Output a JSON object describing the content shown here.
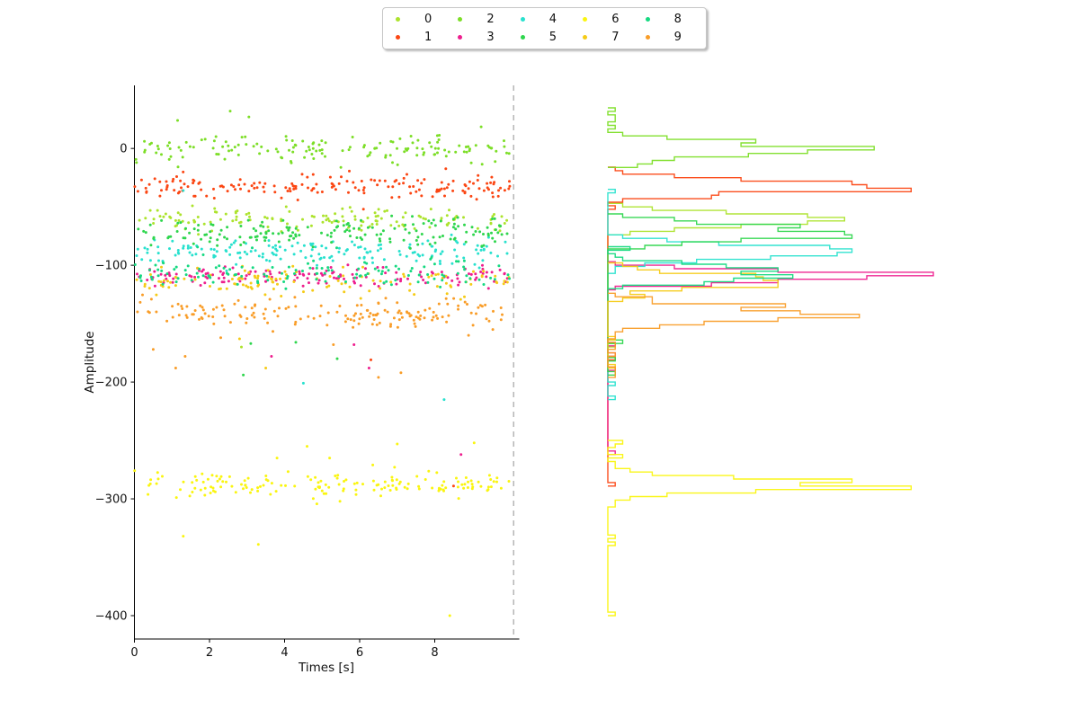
{
  "legend": {
    "entries": [
      {
        "label": "0",
        "color": "#ACE32C"
      },
      {
        "label": "1",
        "color": "#FB4613"
      },
      {
        "label": "2",
        "color": "#7CDE26"
      },
      {
        "label": "3",
        "color": "#EE1E8E"
      },
      {
        "label": "4",
        "color": "#28E1CE"
      },
      {
        "label": "5",
        "color": "#2ED64D"
      },
      {
        "label": "6",
        "color": "#FAF50F"
      },
      {
        "label": "7",
        "color": "#F5CB16"
      },
      {
        "label": "8",
        "color": "#15D981"
      },
      {
        "label": "9",
        "color": "#F99D28"
      }
    ]
  },
  "scatter_plot": {
    "xlabel": "Times [s]",
    "ylabel": "Amplitude",
    "xticks": [
      0,
      2,
      4,
      6,
      8
    ],
    "xtick_labels": [
      "0",
      "2",
      "4",
      "6",
      "8"
    ],
    "yticks": [
      0,
      -100,
      -200,
      -300,
      -400
    ],
    "ytick_labels": [
      "0",
      "−100",
      "−200",
      "−300",
      "−400"
    ],
    "end_line": {
      "x": 10.1,
      "style": "dashed",
      "color": "#a3a3a3"
    }
  },
  "chart_data": {
    "type": "scatter",
    "title": "",
    "xlabel": "Times [s]",
    "ylabel": "Amplitude",
    "xlim": [
      0,
      10.25
    ],
    "ylim": [
      -420,
      54
    ],
    "time_range": [
      0,
      10
    ],
    "recording_end_line_x": 10.1,
    "right_panel": "per-unit amplitude step-histogram, horizontal counts, shared amplitude axis, no axes drawn",
    "hist_bin_width": 3,
    "series": [
      {
        "label": "0",
        "color": "#ACE32C",
        "amp_mean": -60,
        "amp_std": 5.5,
        "n": 140,
        "seed": 101,
        "outliers": [
          [
            2.85,
            -170
          ]
        ]
      },
      {
        "label": "1",
        "color": "#FB4613",
        "amp_mean": -33,
        "amp_std": 5.0,
        "n": 170,
        "seed": 102,
        "outliers": [
          [
            6.1,
            -52
          ],
          [
            6.3,
            -181
          ],
          [
            8.5,
            -289
          ]
        ]
      },
      {
        "label": "2",
        "color": "#7CDE26",
        "amp_mean": 0,
        "amp_std": 6.0,
        "n": 150,
        "seed": 103,
        "outliers": [
          [
            2.55,
            32
          ],
          [
            3.05,
            27
          ],
          [
            1.15,
            24
          ]
        ]
      },
      {
        "label": "3",
        "color": "#EE1E8E",
        "amp_mean": -110,
        "amp_std": 4.5,
        "n": 150,
        "seed": 104,
        "outliers": [
          [
            3.65,
            -178
          ],
          [
            5.85,
            -168
          ],
          [
            6.25,
            -188
          ],
          [
            8.7,
            -262
          ]
        ]
      },
      {
        "label": "4",
        "color": "#28E1CE",
        "amp_mean": -88,
        "amp_std": 5.5,
        "n": 160,
        "seed": 105,
        "outliers": [
          [
            1.3,
            -36
          ],
          [
            8.25,
            -215
          ],
          [
            4.5,
            -201
          ]
        ]
      },
      {
        "label": "5",
        "color": "#2ED64D",
        "amp_mean": -72,
        "amp_std": 6.0,
        "n": 170,
        "seed": 106,
        "outliers": [
          [
            3.1,
            -167
          ],
          [
            4.3,
            -166
          ],
          [
            5.4,
            -180
          ],
          [
            2.9,
            -194
          ]
        ]
      },
      {
        "label": "6",
        "color": "#FAF50F",
        "amp_mean": -288,
        "amp_std": 5.5,
        "n": 160,
        "seed": 107,
        "outliers": [
          [
            1.3,
            -332
          ],
          [
            3.3,
            -339
          ],
          [
            8.4,
            -400
          ],
          [
            3.8,
            -265
          ],
          [
            5.2,
            -265
          ],
          [
            6.35,
            -271
          ],
          [
            7.0,
            -253
          ],
          [
            9.05,
            -252
          ],
          [
            4.6,
            -255
          ]
        ]
      },
      {
        "label": "7",
        "color": "#F5CB16",
        "amp_mean": -114,
        "amp_std": 6.5,
        "n": 120,
        "seed": 108,
        "outliers": [
          [
            3.5,
            -188
          ],
          [
            2.8,
            -163
          ]
        ]
      },
      {
        "label": "8",
        "color": "#15D981",
        "amp_mean": -107,
        "amp_std": 6.5,
        "n": 130,
        "seed": 109,
        "outliers": []
      },
      {
        "label": "9",
        "color": "#F99D28",
        "amp_mean": -142,
        "amp_std": 6.0,
        "n": 160,
        "seed": 110,
        "outliers": [
          [
            1.1,
            -188
          ],
          [
            7.1,
            -192
          ],
          [
            0.5,
            -172
          ],
          [
            5.3,
            -168
          ],
          [
            6.5,
            -196
          ],
          [
            1.35,
            -178
          ],
          [
            2.3,
            -162
          ],
          [
            8.9,
            -160
          ]
        ]
      }
    ]
  }
}
